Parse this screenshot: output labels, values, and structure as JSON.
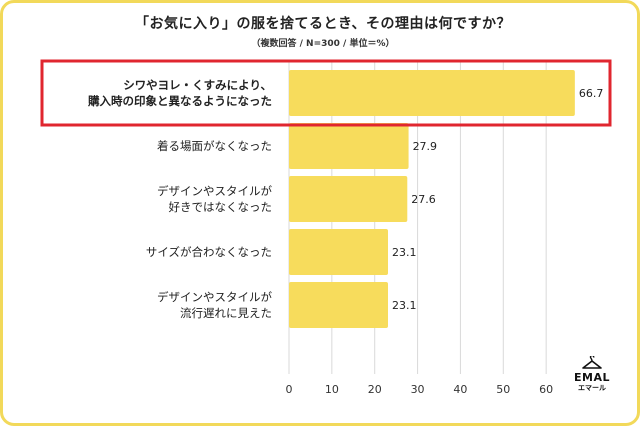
{
  "chart_data": {
    "type": "bar",
    "orientation": "horizontal",
    "title": "「お気に入り」の服を捨てるとき、その理由は何ですか？",
    "subtitle": "（複数回答 / N=300 / 単位＝%）",
    "categories": [
      [
        "シワやヨレ・くすみにより、",
        "購入時の印象と異なるようになった"
      ],
      [
        "着る場面がなくなった"
      ],
      [
        "デザインやスタイルが",
        "好きではなくなった"
      ],
      [
        "サイズが合わなくなった"
      ],
      [
        "デザインやスタイルが",
        "流行遅れに見えた"
      ]
    ],
    "values": [
      66.7,
      27.9,
      27.6,
      23.1,
      23.1
    ],
    "value_labels": [
      "66.7",
      "27.9",
      "27.6",
      "23.1",
      "23.1"
    ],
    "x_ticks": [
      "0",
      "10",
      "20",
      "30",
      "40",
      "50",
      "60"
    ],
    "xlim": [
      0,
      70
    ],
    "grid": true,
    "highlighted_index": 0,
    "colors": {
      "bar": "#f7dc5c",
      "highlight_border": "#e0262f",
      "grid": "#d9d9d9",
      "frame": "#f2d95a"
    }
  },
  "logo": {
    "icon": "hanger-icon",
    "brand": "EMAL",
    "brand_sub": "エマール"
  }
}
